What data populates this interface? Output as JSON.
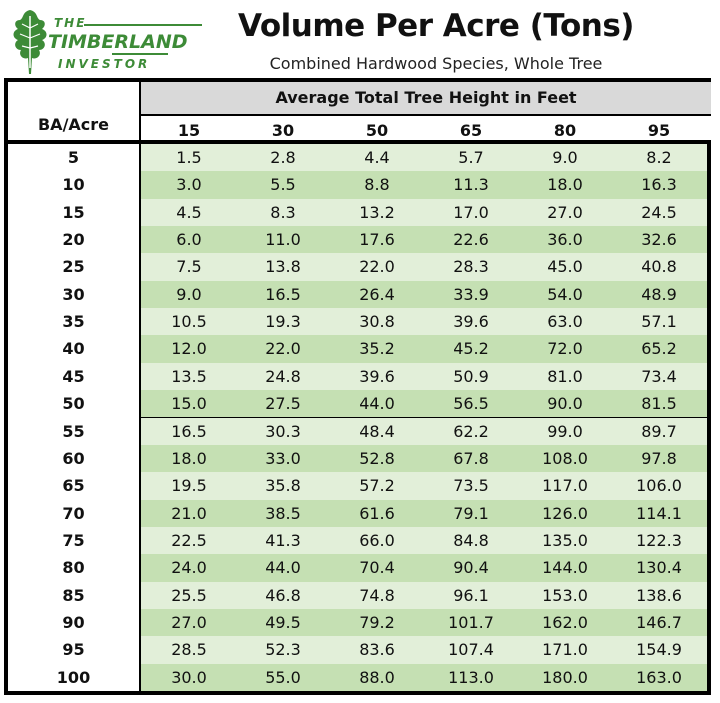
{
  "logo": {
    "line1": "THE",
    "line2": "TIMBERLAND",
    "line3": "INVESTOR",
    "color": "#3d8b37",
    "icon": "oak-leaf-icon"
  },
  "chart_data": {
    "type": "table",
    "title": "Volume Per Acre (Tons)",
    "subtitle": "Combined Hardwood Species, Whole Tree",
    "row_header": "BA/Acre",
    "column_group_header": "Average Total Tree Height in Feet",
    "columns": [
      "15",
      "30",
      "50",
      "65",
      "80",
      "95"
    ],
    "rows": [
      {
        "ba": "5",
        "values": [
          "1.5",
          "2.8",
          "4.4",
          "5.7",
          "9.0",
          "8.2"
        ]
      },
      {
        "ba": "10",
        "values": [
          "3.0",
          "5.5",
          "8.8",
          "11.3",
          "18.0",
          "16.3"
        ]
      },
      {
        "ba": "15",
        "values": [
          "4.5",
          "8.3",
          "13.2",
          "17.0",
          "27.0",
          "24.5"
        ]
      },
      {
        "ba": "20",
        "values": [
          "6.0",
          "11.0",
          "17.6",
          "22.6",
          "36.0",
          "32.6"
        ]
      },
      {
        "ba": "25",
        "values": [
          "7.5",
          "13.8",
          "22.0",
          "28.3",
          "45.0",
          "40.8"
        ]
      },
      {
        "ba": "30",
        "values": [
          "9.0",
          "16.5",
          "26.4",
          "33.9",
          "54.0",
          "48.9"
        ]
      },
      {
        "ba": "35",
        "values": [
          "10.5",
          "19.3",
          "30.8",
          "39.6",
          "63.0",
          "57.1"
        ]
      },
      {
        "ba": "40",
        "values": [
          "12.0",
          "22.0",
          "35.2",
          "45.2",
          "72.0",
          "65.2"
        ]
      },
      {
        "ba": "45",
        "values": [
          "13.5",
          "24.8",
          "39.6",
          "50.9",
          "81.0",
          "73.4"
        ]
      },
      {
        "ba": "50",
        "values": [
          "15.0",
          "27.5",
          "44.0",
          "56.5",
          "90.0",
          "81.5"
        ]
      },
      {
        "ba": "55",
        "values": [
          "16.5",
          "30.3",
          "48.4",
          "62.2",
          "99.0",
          "89.7"
        ]
      },
      {
        "ba": "60",
        "values": [
          "18.0",
          "33.0",
          "52.8",
          "67.8",
          "108.0",
          "97.8"
        ]
      },
      {
        "ba": "65",
        "values": [
          "19.5",
          "35.8",
          "57.2",
          "73.5",
          "117.0",
          "106.0"
        ]
      },
      {
        "ba": "70",
        "values": [
          "21.0",
          "38.5",
          "61.6",
          "79.1",
          "126.0",
          "114.1"
        ]
      },
      {
        "ba": "75",
        "values": [
          "22.5",
          "41.3",
          "66.0",
          "84.8",
          "135.0",
          "122.3"
        ]
      },
      {
        "ba": "80",
        "values": [
          "24.0",
          "44.0",
          "70.4",
          "90.4",
          "144.0",
          "130.4"
        ]
      },
      {
        "ba": "85",
        "values": [
          "25.5",
          "46.8",
          "74.8",
          "96.1",
          "153.0",
          "138.6"
        ]
      },
      {
        "ba": "90",
        "values": [
          "27.0",
          "49.5",
          "79.2",
          "101.7",
          "162.0",
          "146.7"
        ]
      },
      {
        "ba": "95",
        "values": [
          "28.5",
          "52.3",
          "83.6",
          "107.4",
          "171.0",
          "154.9"
        ]
      },
      {
        "ba": "100",
        "values": [
          "30.0",
          "55.0",
          "88.0",
          "113.0",
          "180.0",
          "163.0"
        ]
      }
    ],
    "colors": {
      "row_light": "#e2efd9",
      "row_dark": "#c5e0b3",
      "header_band": "#d9d9d9",
      "border": "#000000"
    }
  }
}
